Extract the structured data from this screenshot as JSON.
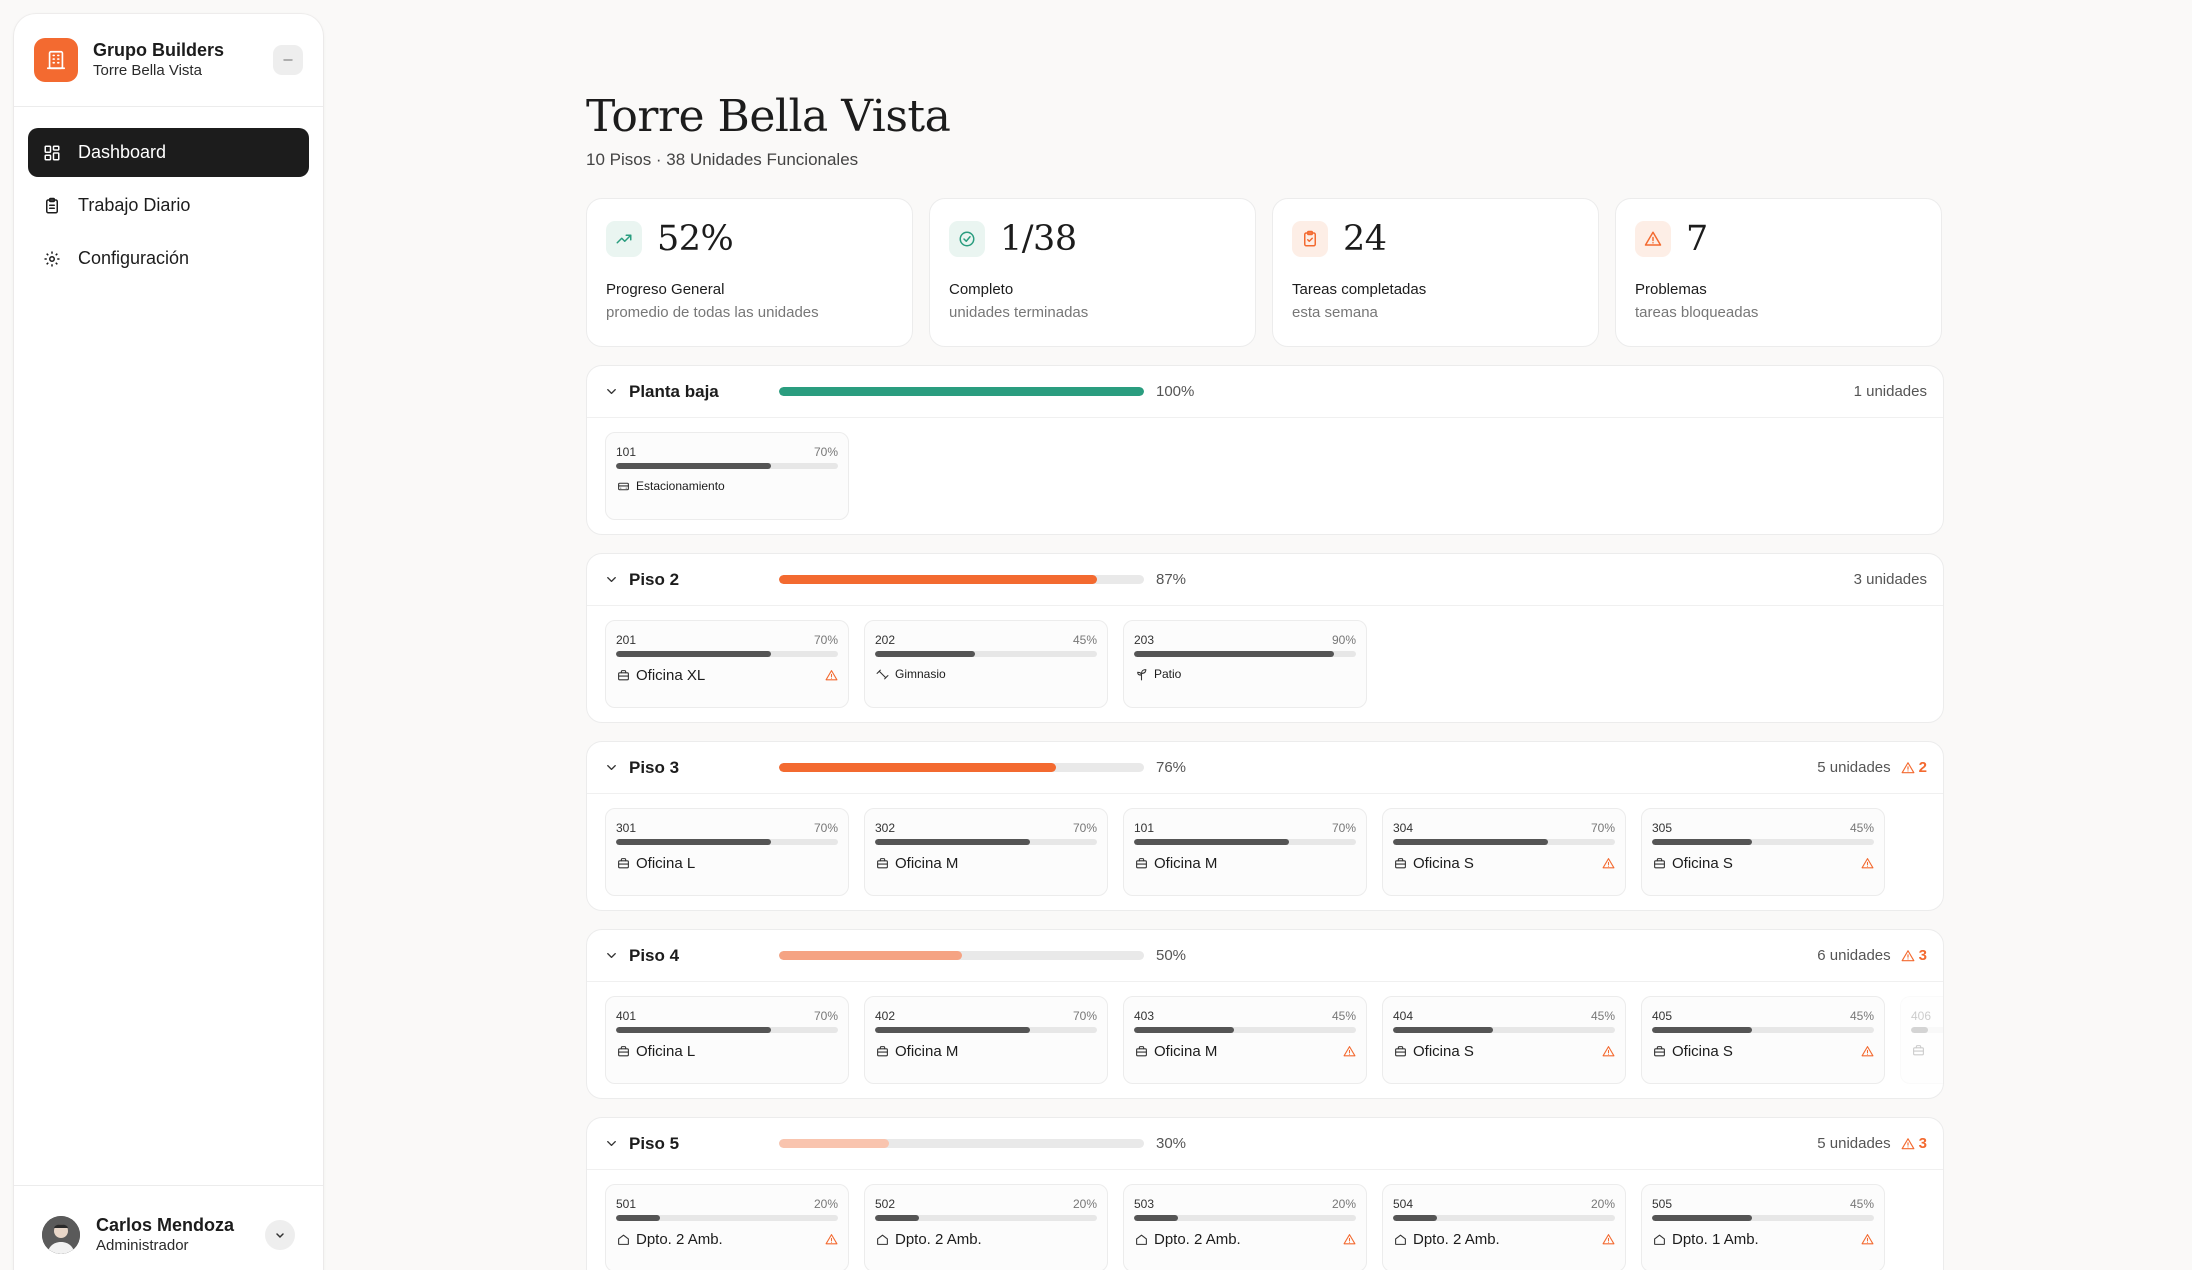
{
  "sidebar": {
    "brand_name": "Grupo Builders",
    "brand_sub": "Torre Bella Vista",
    "nav": [
      {
        "label": "Dashboard",
        "icon": "grid-icon",
        "active": true
      },
      {
        "label": "Trabajo Diario",
        "icon": "clipboard-icon",
        "active": false
      },
      {
        "label": "Configuración",
        "icon": "gear-icon",
        "active": false
      }
    ],
    "user": {
      "name": "Carlos Mendoza",
      "role": "Administrador"
    }
  },
  "header": {
    "title": "Torre Bella Vista",
    "subtitle": "10 Pisos · 38 Unidades Funcionales"
  },
  "stats": [
    {
      "value": "52%",
      "label": "Progreso General",
      "desc": "promedio de todas las unidades",
      "icon": "trending-up-icon",
      "color": "#2a9d7f",
      "bg": "#eaf5f1"
    },
    {
      "value": "1/38",
      "label": "Completo",
      "desc": "unidades terminadas",
      "icon": "check-circle-icon",
      "color": "#2a9d7f",
      "bg": "#eaf5f1"
    },
    {
      "value": "24",
      "label": "Tareas completadas",
      "desc": "esta semana",
      "icon": "clipboard-check-icon",
      "color": "#f36a30",
      "bg": "#fdeee6"
    },
    {
      "value": "7",
      "label": "Problemas",
      "desc": "tareas bloqueadas",
      "icon": "alert-triangle-icon",
      "color": "#f36a30",
      "bg": "#fdeee6"
    }
  ],
  "floors": [
    {
      "name": "Planta baja",
      "progress": 1.0,
      "pct_label": "100%",
      "bar_color": "#2a9d7f",
      "units_label": "1 unidades",
      "warnings": "",
      "units": [
        {
          "code": "101",
          "pct": "70%",
          "progress": 0.7,
          "type": "Estacionamiento",
          "icon": "parking-icon",
          "small": true,
          "warn": false
        }
      ]
    },
    {
      "name": "Piso 2",
      "progress": 0.87,
      "pct_label": "87%",
      "bar_color": "#f36a30",
      "units_label": "3 unidades",
      "warnings": "",
      "units": [
        {
          "code": "201",
          "pct": "70%",
          "progress": 0.7,
          "type": "Oficina XL",
          "icon": "briefcase-icon",
          "small": false,
          "warn": true
        },
        {
          "code": "202",
          "pct": "45%",
          "progress": 0.45,
          "type": "Gimnasio",
          "icon": "dumbbell-icon",
          "small": true,
          "warn": false
        },
        {
          "code": "203",
          "pct": "90%",
          "progress": 0.9,
          "type": "Patio",
          "icon": "plant-icon",
          "small": true,
          "warn": false
        }
      ]
    },
    {
      "name": "Piso 3",
      "progress": 0.76,
      "pct_label": "76%",
      "bar_color": "#f36a30",
      "units_label": "5 unidades",
      "warnings": "2",
      "units": [
        {
          "code": "301",
          "pct": "70%",
          "progress": 0.7,
          "type": "Oficina L",
          "icon": "briefcase-icon",
          "small": false,
          "warn": false
        },
        {
          "code": "302",
          "pct": "70%",
          "progress": 0.7,
          "type": "Oficina M",
          "icon": "briefcase-icon",
          "small": false,
          "warn": false
        },
        {
          "code": "101",
          "pct": "70%",
          "progress": 0.7,
          "type": "Oficina M",
          "icon": "briefcase-icon",
          "small": false,
          "warn": false
        },
        {
          "code": "304",
          "pct": "70%",
          "progress": 0.7,
          "type": "Oficina S",
          "icon": "briefcase-icon",
          "small": false,
          "warn": true
        },
        {
          "code": "305",
          "pct": "45%",
          "progress": 0.45,
          "type": "Oficina S",
          "icon": "briefcase-icon",
          "small": false,
          "warn": true
        }
      ]
    },
    {
      "name": "Piso 4",
      "progress": 0.5,
      "pct_label": "50%",
      "bar_color": "#f5a383",
      "units_label": "6 unidades",
      "warnings": "3",
      "units": [
        {
          "code": "401",
          "pct": "70%",
          "progress": 0.7,
          "type": "Oficina L",
          "icon": "briefcase-icon",
          "small": false,
          "warn": false
        },
        {
          "code": "402",
          "pct": "70%",
          "progress": 0.7,
          "type": "Oficina M",
          "icon": "briefcase-icon",
          "small": false,
          "warn": false
        },
        {
          "code": "403",
          "pct": "45%",
          "progress": 0.45,
          "type": "Oficina M",
          "icon": "briefcase-icon",
          "small": false,
          "warn": true
        },
        {
          "code": "404",
          "pct": "45%",
          "progress": 0.45,
          "type": "Oficina S",
          "icon": "briefcase-icon",
          "small": false,
          "warn": true
        },
        {
          "code": "405",
          "pct": "45%",
          "progress": 0.45,
          "type": "Oficina S",
          "icon": "briefcase-icon",
          "small": false,
          "warn": true
        },
        {
          "code": "406",
          "pct": "",
          "progress": 0.45,
          "type": "",
          "icon": "briefcase-icon",
          "small": false,
          "warn": false,
          "faded": true
        }
      ]
    },
    {
      "name": "Piso 5",
      "progress": 0.3,
      "pct_label": "30%",
      "bar_color": "#f9c4ae",
      "units_label": "5 unidades",
      "warnings": "3",
      "units": [
        {
          "code": "501",
          "pct": "20%",
          "progress": 0.2,
          "type": "Dpto. 2 Amb.",
          "icon": "home-icon",
          "small": false,
          "warn": true
        },
        {
          "code": "502",
          "pct": "20%",
          "progress": 0.2,
          "type": "Dpto. 2 Amb.",
          "icon": "home-icon",
          "small": false,
          "warn": false
        },
        {
          "code": "503",
          "pct": "20%",
          "progress": 0.2,
          "type": "Dpto. 2 Amb.",
          "icon": "home-icon",
          "small": false,
          "warn": true
        },
        {
          "code": "504",
          "pct": "20%",
          "progress": 0.2,
          "type": "Dpto. 2 Amb.",
          "icon": "home-icon",
          "small": false,
          "warn": true
        },
        {
          "code": "505",
          "pct": "45%",
          "progress": 0.45,
          "type": "Dpto. 1 Amb.",
          "icon": "home-icon",
          "small": false,
          "warn": true
        }
      ]
    }
  ]
}
